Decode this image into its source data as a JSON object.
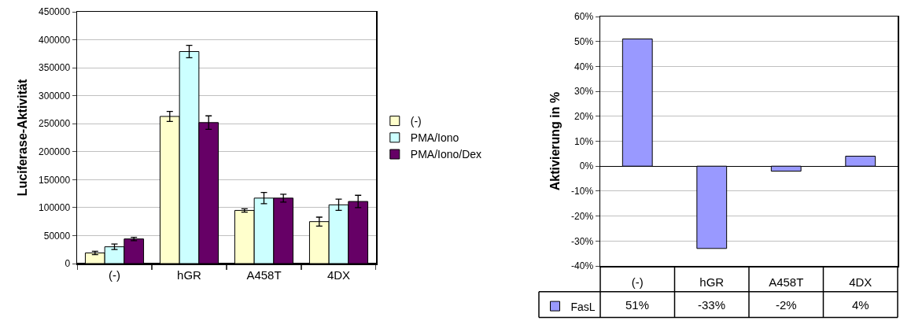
{
  "chart_data": [
    {
      "type": "bar",
      "ylabel": "Luciferase-Aktivität",
      "categories": [
        "(-)",
        "hGR",
        "A458T",
        "4DX"
      ],
      "series": [
        {
          "name": "(-)",
          "color": "#ffffcc",
          "values": [
            19000,
            263000,
            95000,
            75000
          ],
          "errors": [
            3000,
            9000,
            3000,
            8000
          ]
        },
        {
          "name": "PMA/Iono",
          "color": "#ccffff",
          "values": [
            30000,
            379000,
            117000,
            105000
          ],
          "errors": [
            5000,
            11000,
            10000,
            10000
          ]
        },
        {
          "name": "PMA/Iono/Dex",
          "color": "#660066",
          "values": [
            44000,
            252000,
            117000,
            111000
          ],
          "errors": [
            3000,
            12000,
            7000,
            11000
          ]
        }
      ],
      "ylim": [
        0,
        450000
      ],
      "yticks": [
        0,
        50000,
        100000,
        150000,
        200000,
        250000,
        300000,
        350000,
        400000,
        450000
      ],
      "grid": "y",
      "legend": "right"
    },
    {
      "type": "bar",
      "ylabel": "Aktivierung in %",
      "categories": [
        "(-)",
        "hGR",
        "A458T",
        "4DX"
      ],
      "series": [
        {
          "name": "FasL",
          "color": "#9999ff",
          "values": [
            51,
            -33,
            -2,
            4
          ],
          "value_labels": [
            "51%",
            "-33%",
            "-2%",
            "4%"
          ]
        }
      ],
      "ylim": [
        -40,
        60
      ],
      "yticks": [
        {
          "value": -40,
          "label": "-40%"
        },
        {
          "value": -30,
          "label": "-30%"
        },
        {
          "value": -20,
          "label": "-20%"
        },
        {
          "value": -10,
          "label": "-10%"
        },
        {
          "value": 0,
          "label": "0%"
        },
        {
          "value": 10,
          "label": "10%"
        },
        {
          "value": 20,
          "label": "20%"
        },
        {
          "value": 30,
          "label": "30%"
        },
        {
          "value": 40,
          "label": "40%"
        },
        {
          "value": 50,
          "label": "50%"
        },
        {
          "value": 60,
          "label": "60%"
        }
      ],
      "grid": "y",
      "legend": "bottom left"
    }
  ]
}
